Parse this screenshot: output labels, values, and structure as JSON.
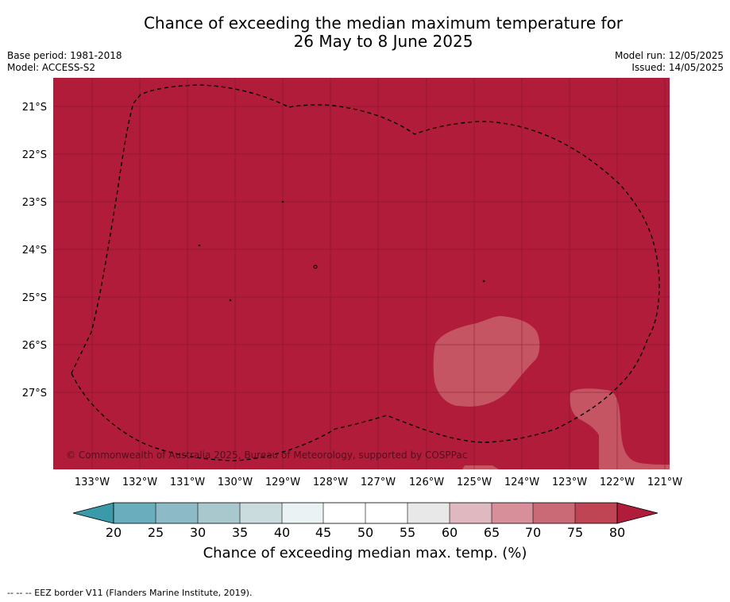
{
  "title": {
    "line1": "Chance of exceeding the median maximum temperature for",
    "line2": "26 May to 8 June 2025"
  },
  "meta": {
    "base_period": "Base period: 1981-2018",
    "model": "Model: ACCESS-S2",
    "model_run": "Model run: 12/05/2025",
    "issued": "Issued: 14/05/2025"
  },
  "map": {
    "copyright": "© Commonwealth of Australia 2025, Bureau of Meteorology, supported by COSPPac",
    "lat_ticks": [
      "21°S",
      "22°S",
      "23°S",
      "24°S",
      "25°S",
      "26°S",
      "27°S"
    ],
    "lon_ticks": [
      "133°W",
      "132°W",
      "131°W",
      "130°W",
      "129°W",
      "128°W",
      "127°W",
      "126°W",
      "125°W",
      "124°W",
      "123°W",
      "122°W",
      "121°W"
    ],
    "colors": {
      "band_75_80_plus": "#b01c3a",
      "band_70_75": "#c55563",
      "eez_border": "#000000",
      "grid": "#7a1427"
    }
  },
  "colorbar": {
    "label": "Chance of exceeding median max. temp. (%)",
    "ticks": [
      "20",
      "25",
      "30",
      "35",
      "40",
      "45",
      "50",
      "55",
      "60",
      "65",
      "70",
      "75",
      "80"
    ],
    "colors": [
      "#3a9aaa",
      "#6aaebd",
      "#8cbac6",
      "#a8c8ce",
      "#cbdcdf",
      "#ebf2f3",
      "#ffffff",
      "#ffffff",
      "#e8e8e8",
      "#e0b8bf",
      "#d7909a",
      "#ca6a76",
      "#bf4554",
      "#b01c3a"
    ]
  },
  "footnote": "--  --  -- EEZ border V11 (Flanders Marine Institute, 2019)."
}
